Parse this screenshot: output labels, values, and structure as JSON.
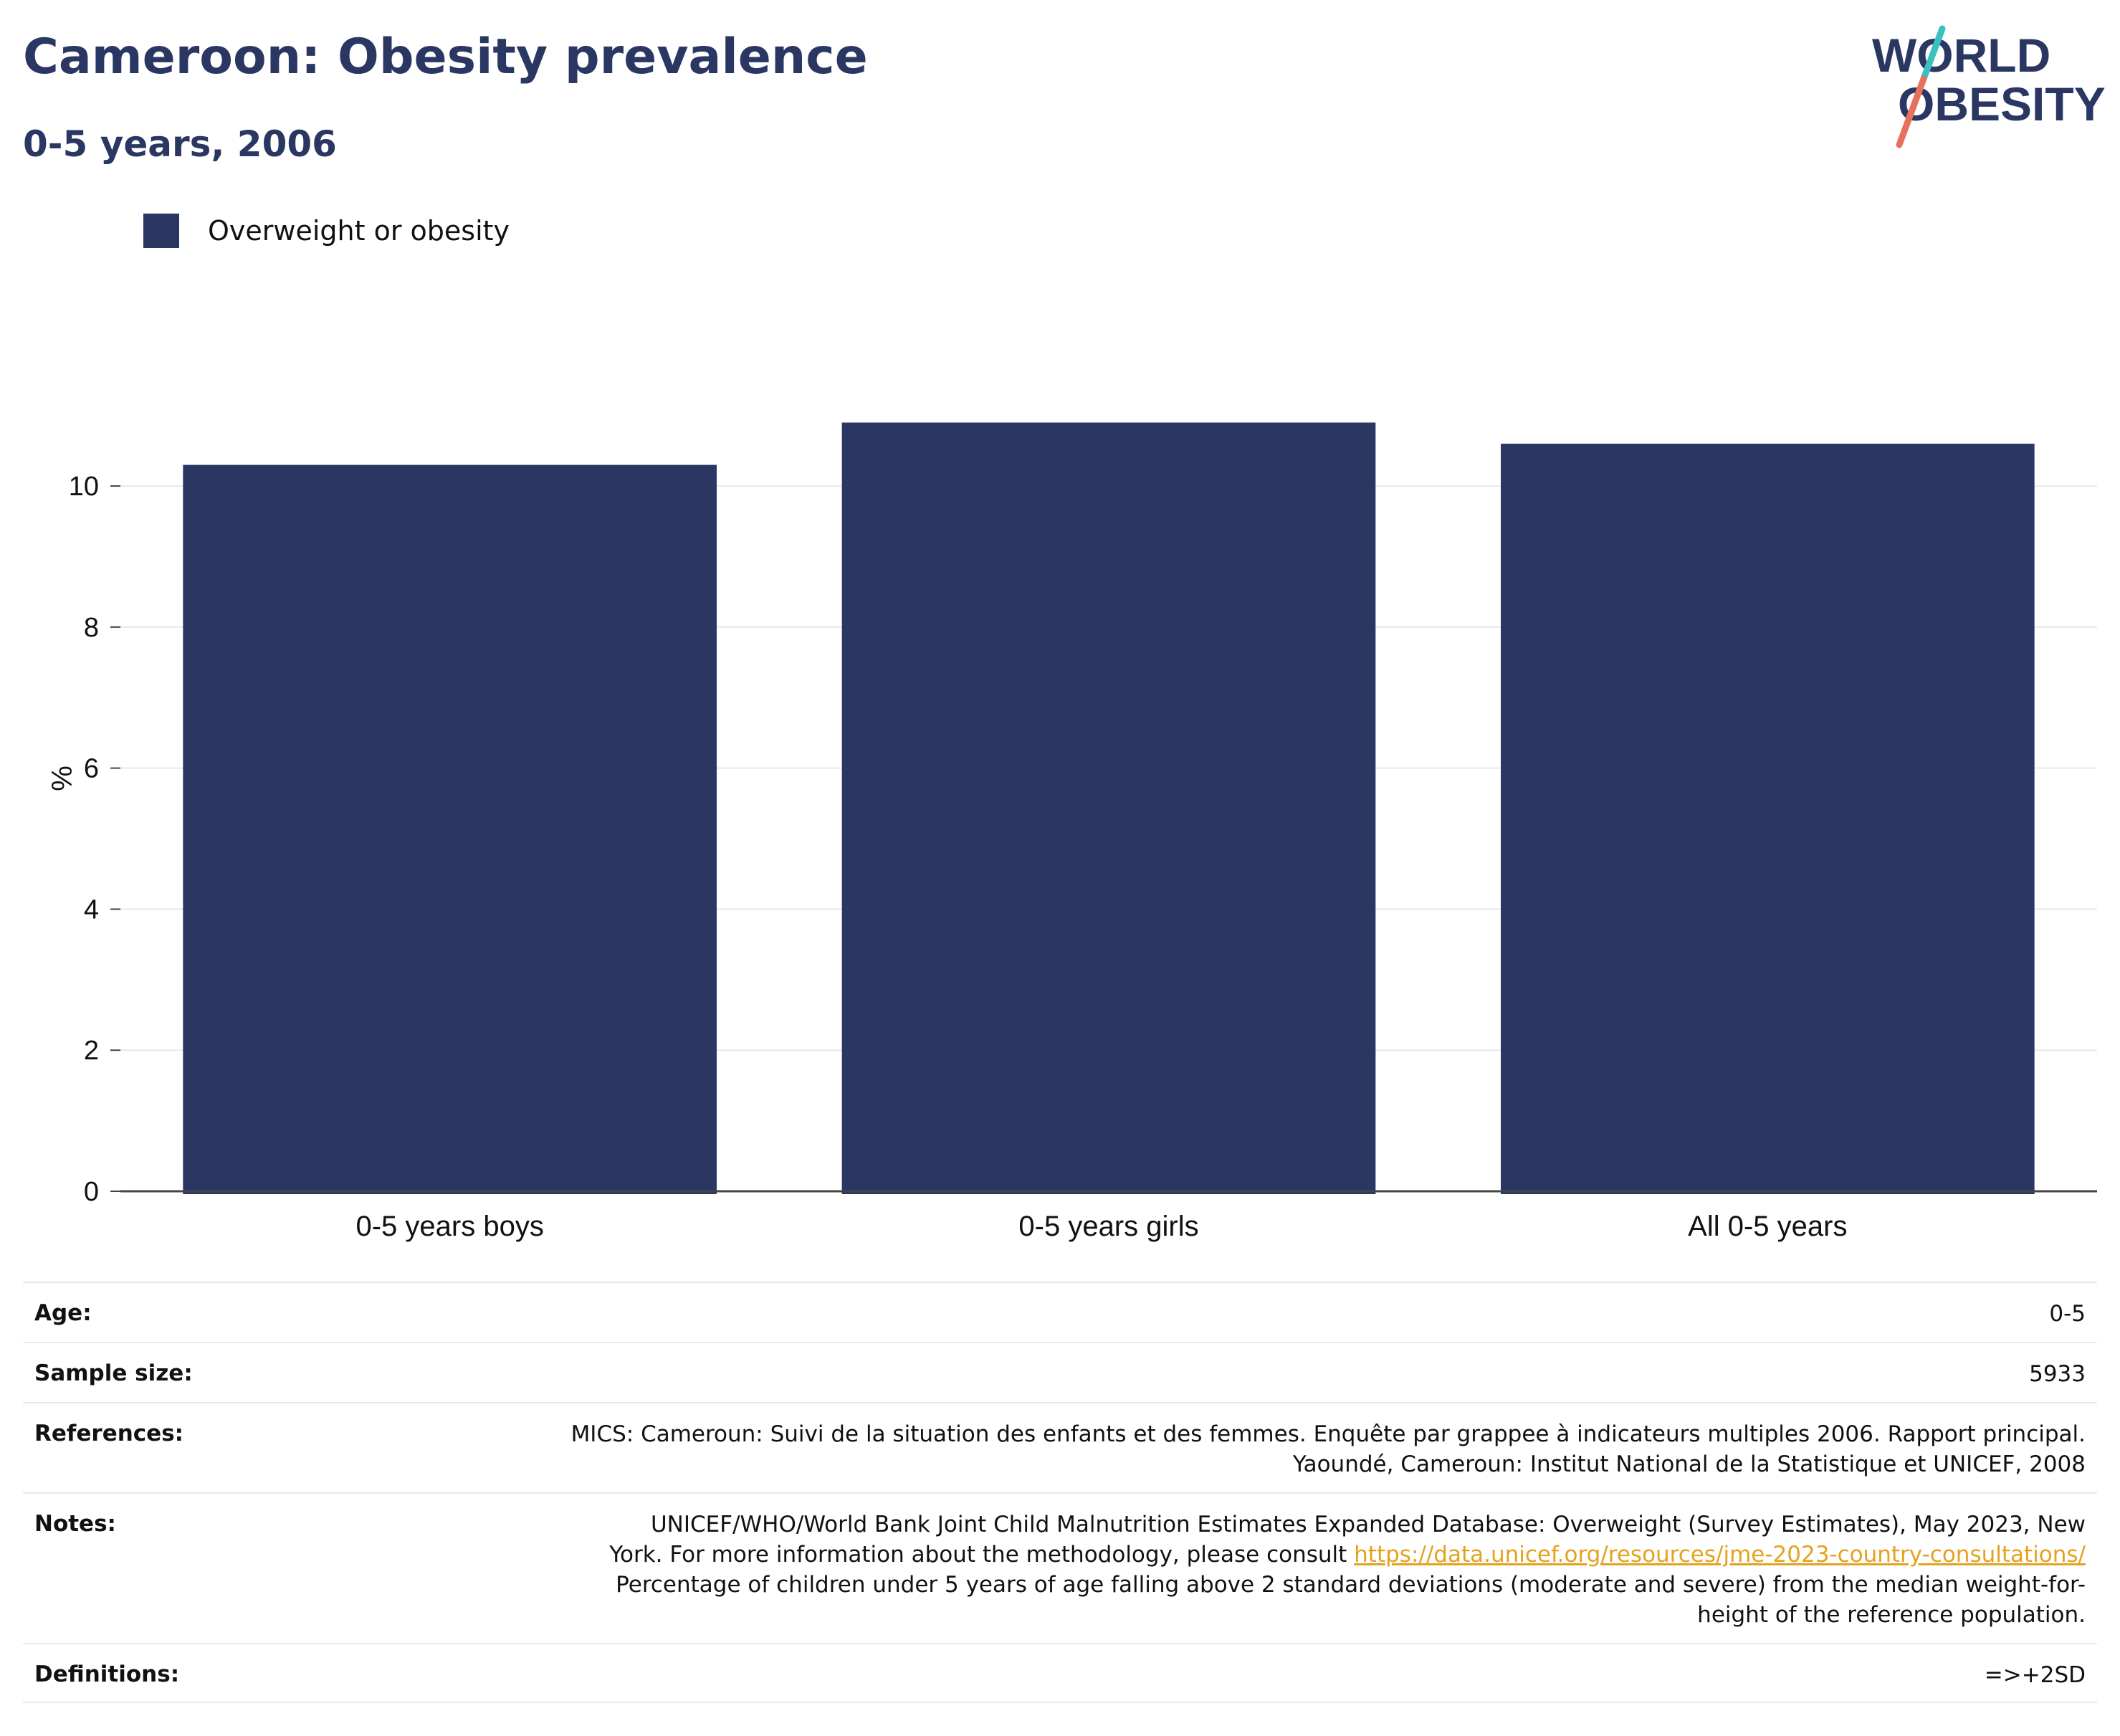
{
  "header": {
    "title": "Cameroon: Obesity prevalence",
    "subtitle": "0-5 years, 2006",
    "logo_line1": "WORLD",
    "logo_line2": "OBESITY"
  },
  "colors": {
    "bar": "#2b3763",
    "title": "#2b3763",
    "link": "#e5a21f",
    "logo_teal": "#3bbfbf",
    "logo_coral": "#e8715d",
    "grid": "#e9e9ee"
  },
  "chart_data": {
    "type": "bar",
    "title": "Cameroon: Obesity prevalence",
    "subtitle": "0-5 years, 2006",
    "categories": [
      "0-5 years boys",
      "0-5 years girls",
      "All 0-5 years"
    ],
    "series": [
      {
        "name": "Overweight or obesity",
        "values": [
          10.3,
          10.9,
          10.6
        ]
      }
    ],
    "ylabel": "%",
    "xlabel": "",
    "ylim": [
      0,
      11.2
    ],
    "yticks": [
      0,
      2,
      4,
      6,
      8,
      10
    ],
    "grid": true,
    "legend_position": "top-left"
  },
  "meta": {
    "age_label": "Age:",
    "age_value": "0-5",
    "sample_label": "Sample size:",
    "sample_value": "5933",
    "references_label": "References:",
    "references_line1": "MICS: Cameroun: Suivi de la situation des enfants et des femmes. Enquête par grappee à indicateurs multiples 2006. Rapport principal.",
    "references_line2": "Yaoundé, Cameroun: Institut National de la Statistique et UNICEF, 2008",
    "notes_label": "Notes:",
    "notes_line1": "UNICEF/WHO/World Bank Joint Child Malnutrition Estimates Expanded Database: Overweight (Survey Estimates), May 2023, New",
    "notes_line2_pre": "York. For more information about the methodology, please consult ",
    "notes_link": "https://data.unicef.org/resources/jme-2023-country-consultations/",
    "notes_line3": "Percentage of children under 5 years of age falling above 2 standard deviations (moderate and severe) from the median weight-for-",
    "notes_line4": "height of the reference population.",
    "definitions_label": "Definitions:",
    "definitions_value": "=>+2SD"
  }
}
